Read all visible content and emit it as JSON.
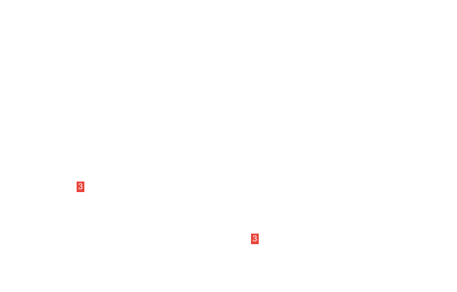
{
  "badges": [
    {
      "label": "3",
      "color": "#e8453c"
    },
    {
      "label": "3",
      "color": "#e8453c"
    }
  ]
}
